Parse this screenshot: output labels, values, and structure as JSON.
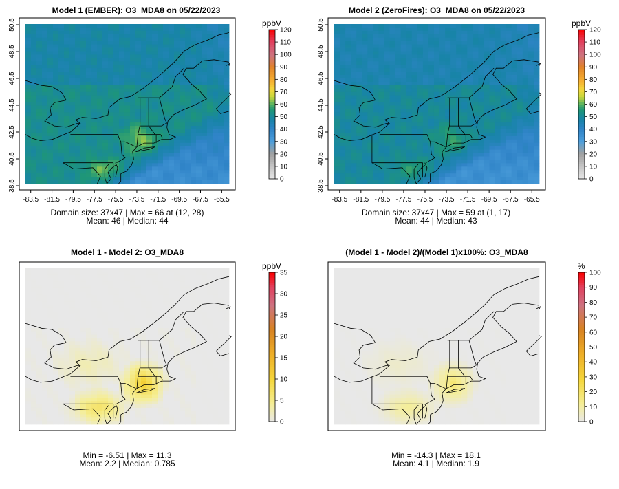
{
  "chart_data": [
    {
      "type": "heatmap",
      "title": "Model 1 (EMBER): O3_MDA8 on 05/22/2023",
      "legend_unit": "ppbV",
      "legend_ticks": [
        0,
        10,
        20,
        30,
        40,
        50,
        60,
        70,
        80,
        90,
        100,
        110,
        120
      ],
      "legend_range": [
        0,
        120
      ],
      "x_ticks": [
        "-83.5",
        "-81.5",
        "-79.5",
        "-77.5",
        "-75.5",
        "-73.5",
        "-71.5",
        "-69.5",
        "-67.5",
        "-65.5"
      ],
      "y_ticks": [
        "38.5",
        "40.5",
        "42.5",
        "44.5",
        "46.5",
        "48.5",
        "50.5"
      ],
      "stats_line1": "Domain size: 37x47 | Max = 66 at (12, 28)",
      "stats_line2": "Mean: 46 |  Median: 44",
      "field": {
        "land_base": 52,
        "ocean_north": 44,
        "ocean_south": 34,
        "plume_peak": 64,
        "grid": [
          37,
          47
        ]
      }
    },
    {
      "type": "heatmap",
      "title": "Model 2 (ZeroFires): O3_MDA8 on 05/22/2023",
      "legend_unit": "ppbV",
      "legend_ticks": [
        0,
        10,
        20,
        30,
        40,
        50,
        60,
        70,
        80,
        90,
        100,
        110,
        120
      ],
      "legend_range": [
        0,
        120
      ],
      "x_ticks": [
        "-83.5",
        "-81.5",
        "-79.5",
        "-77.5",
        "-75.5",
        "-73.5",
        "-71.5",
        "-69.5",
        "-67.5",
        "-65.5"
      ],
      "y_ticks": [
        "38.5",
        "40.5",
        "42.5",
        "44.5",
        "46.5",
        "48.5",
        "50.5"
      ],
      "stats_line1": "Domain size: 37x47 | Max = 59 at (1, 17)",
      "stats_line2": "Mean: 44 |  Median: 43",
      "field": {
        "land_base": 50,
        "ocean_north": 43,
        "ocean_south": 33,
        "plume_peak": 58,
        "grid": [
          37,
          47
        ]
      }
    },
    {
      "type": "heatmap",
      "title": "Model 1 - Model 2: O3_MDA8",
      "legend_unit": "ppbV",
      "legend_ticks": [
        0,
        5,
        10,
        15,
        20,
        25,
        30,
        35
      ],
      "legend_range": [
        0,
        35
      ],
      "stats_line1": "Min = -6.51 | Max = 11.3",
      "stats_line2": "Mean: 2.2 |  Median: 0.785",
      "field": {
        "background": 0,
        "plume_peak": 11,
        "grid": [
          37,
          47
        ]
      }
    },
    {
      "type": "heatmap",
      "title": "(Model 1 - Model 2)/(Model 1)x100%: O3_MDA8",
      "legend_unit": "%",
      "legend_ticks": [
        0,
        10,
        20,
        30,
        40,
        50,
        60,
        70,
        80,
        90,
        100
      ],
      "legend_range": [
        0,
        100
      ],
      "stats_line1": "Min = -14.3 | Max = 18.1",
      "stats_line2": "Mean: 4.1 |  Median: 1.9",
      "field": {
        "background": 0,
        "plume_peak": 18,
        "grid": [
          37,
          47
        ]
      }
    }
  ]
}
